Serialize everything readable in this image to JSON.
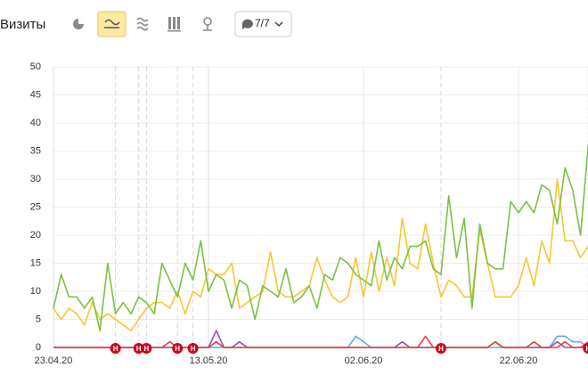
{
  "toolbar": {
    "title": "Визиты",
    "filter": "7/7"
  },
  "chart_data": {
    "type": "line",
    "categories": [
      "23.04.20",
      null,
      null,
      null,
      null,
      null,
      null,
      null,
      null,
      null,
      null,
      null,
      null,
      null,
      null,
      null,
      null,
      null,
      null,
      null,
      "13.05.20",
      null,
      null,
      null,
      null,
      null,
      null,
      null,
      null,
      null,
      null,
      null,
      null,
      null,
      null,
      null,
      null,
      null,
      null,
      null,
      "02.06.20",
      null,
      null,
      null,
      null,
      null,
      null,
      null,
      null,
      null,
      null,
      null,
      null,
      null,
      null,
      null,
      null,
      null,
      null,
      null,
      "22.06.20",
      null,
      null,
      null,
      null,
      null,
      null,
      null,
      null,
      null
    ],
    "series": [
      {
        "color": "#7cc142",
        "values": [
          7,
          13,
          9,
          9,
          7,
          9,
          3,
          15,
          6,
          8,
          6,
          9,
          8,
          6,
          15,
          12,
          9,
          15,
          12,
          19,
          10,
          13,
          12,
          7,
          12,
          11,
          5,
          11,
          10,
          9,
          14,
          8,
          9,
          11,
          7,
          13,
          12,
          16,
          15,
          13,
          12,
          11,
          19,
          12,
          16,
          14,
          18,
          18,
          19,
          14,
          13,
          27,
          16,
          23,
          7,
          22,
          15,
          14,
          14,
          26,
          24,
          26,
          24,
          29,
          28,
          22,
          32,
          28,
          20,
          36
        ]
      },
      {
        "color": "#f5c830",
        "values": [
          7,
          5,
          7,
          6,
          4,
          8,
          5,
          6,
          5,
          4,
          3,
          5,
          7,
          8,
          8,
          7,
          10,
          6,
          10,
          9,
          14,
          13,
          13,
          15,
          7,
          8,
          9,
          10,
          17,
          10,
          9,
          9,
          10,
          11,
          16,
          12,
          9,
          8,
          9,
          16,
          9,
          17,
          10,
          16,
          11,
          23,
          15,
          14,
          22,
          15,
          9,
          12,
          11,
          9,
          9,
          21,
          15,
          9,
          9,
          9,
          11,
          16,
          11,
          19,
          15,
          30,
          19,
          19,
          16,
          18
        ]
      },
      {
        "color": "#e8413a",
        "values": [
          0,
          0,
          0,
          0,
          0,
          0,
          0,
          0,
          0,
          0,
          0,
          0,
          0,
          0,
          0,
          1,
          0,
          0,
          0,
          0,
          0,
          1,
          0,
          0,
          0,
          0,
          0,
          0,
          0,
          0,
          0,
          0,
          0,
          0,
          0,
          0,
          0,
          0,
          0,
          0,
          0,
          0,
          0,
          0,
          0,
          0,
          0,
          0,
          2,
          0,
          0,
          0,
          0,
          0,
          0,
          0,
          0,
          1,
          0,
          0,
          0,
          0,
          1,
          0,
          0,
          0,
          1,
          0,
          0,
          1
        ]
      },
      {
        "color": "#9b4fb0",
        "values": [
          0,
          0,
          0,
          0,
          0,
          0,
          0,
          0,
          0,
          0,
          0,
          0,
          0,
          0,
          0,
          0,
          0,
          0,
          0,
          0,
          0,
          3,
          0,
          0,
          1,
          0,
          0,
          0,
          0,
          0,
          0,
          0,
          0,
          0,
          0,
          0,
          0,
          0,
          0,
          0,
          0,
          0,
          0,
          0,
          0,
          1,
          0,
          0,
          0,
          0,
          0,
          0,
          0,
          0,
          0,
          0,
          0,
          1,
          0,
          0,
          0,
          0,
          0,
          0,
          0,
          1,
          0,
          0,
          0,
          0
        ]
      },
      {
        "color": "#5aafe0",
        "values": [
          0,
          0,
          0,
          0,
          0,
          0,
          0,
          0,
          0,
          0,
          0,
          0,
          0,
          0,
          0,
          0,
          0,
          0,
          0,
          0,
          0,
          0,
          0,
          0,
          0,
          0,
          0,
          0,
          0,
          0,
          0,
          0,
          0,
          0,
          0,
          0,
          0,
          0,
          0,
          2,
          1,
          0,
          0,
          0,
          0,
          0,
          0,
          0,
          0,
          0,
          0,
          0,
          0,
          0,
          0,
          0,
          0,
          0,
          0,
          0,
          0,
          0,
          0,
          0,
          0,
          2,
          2,
          1,
          1,
          0
        ]
      }
    ],
    "ylim": [
      0,
      50
    ],
    "yticks": [
      0,
      5,
      10,
      15,
      20,
      25,
      30,
      35,
      40,
      45,
      50
    ],
    "grid": true,
    "markers": [
      {
        "at": 8,
        "label": "Н"
      },
      {
        "at": 11,
        "label": "Н"
      },
      {
        "at": 12,
        "label": "Н"
      },
      {
        "at": 16,
        "label": "Н"
      },
      {
        "at": 18,
        "label": "Н"
      },
      {
        "at": 50,
        "label": "Н"
      },
      {
        "at": 69,
        "label": "Н"
      }
    ]
  }
}
